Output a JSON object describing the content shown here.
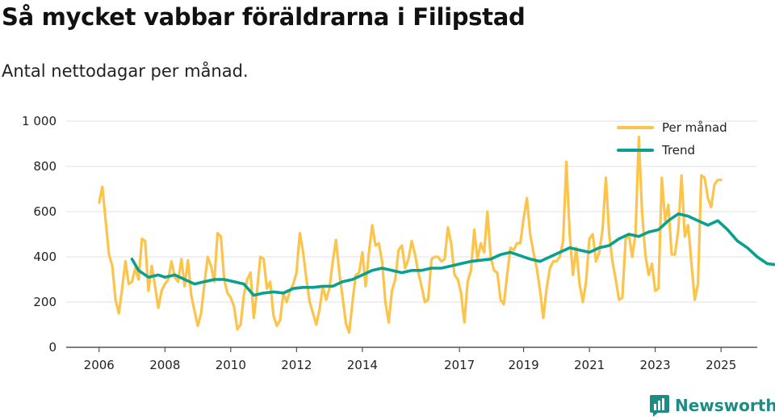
{
  "title": "Så mycket vabbar föräldrarna i Filipstad",
  "subtitle": "Antal nettodagar per månad.",
  "brand": {
    "name": "Newsworthy",
    "icon": "newsworthy-logo-icon",
    "color": "#1e8c84"
  },
  "colors": {
    "monthly": "#fcc44a",
    "trend": "#0aa08f",
    "grid": "#e0e0e0",
    "axis": "#333333"
  },
  "chart_data": {
    "type": "line",
    "title": "Så mycket vabbar föräldrarna i Filipstad",
    "subtitle": "Antal nettodagar per månad.",
    "xlabel": "",
    "ylabel": "",
    "ylim": [
      0,
      1000
    ],
    "xlim": [
      2005.0,
      2026.0
    ],
    "yticks": [
      0,
      200,
      400,
      600,
      800,
      1000
    ],
    "ytick_labels": [
      "0",
      "200",
      "400",
      "600",
      "800",
      "1 000"
    ],
    "xticks": [
      2006,
      2008,
      2010,
      2012,
      2014,
      2017,
      2019,
      2021,
      2023,
      2025
    ],
    "xtick_positions": [
      2006.0,
      2008.0,
      2010.0,
      2012.0,
      2014.0,
      2016.95,
      2018.9,
      2020.9,
      2022.9,
      2024.9
    ],
    "legend": {
      "position": "top-right",
      "entries": [
        "Per månad",
        "Trend"
      ]
    },
    "series": [
      {
        "name": "Per månad",
        "points": [
          [
            2006.0,
            640
          ],
          [
            2006.1,
            710
          ],
          [
            2006.2,
            560
          ],
          [
            2006.3,
            410
          ],
          [
            2006.4,
            360
          ],
          [
            2006.5,
            210
          ],
          [
            2006.6,
            150
          ],
          [
            2006.7,
            260
          ],
          [
            2006.8,
            380
          ],
          [
            2006.9,
            280
          ],
          [
            2007.0,
            290
          ],
          [
            2007.1,
            350
          ],
          [
            2007.2,
            300
          ],
          [
            2007.3,
            480
          ],
          [
            2007.4,
            470
          ],
          [
            2007.5,
            250
          ],
          [
            2007.6,
            360
          ],
          [
            2007.7,
            270
          ],
          [
            2007.8,
            175
          ],
          [
            2007.9,
            250
          ],
          [
            2008.0,
            280
          ],
          [
            2008.1,
            300
          ],
          [
            2008.2,
            380
          ],
          [
            2008.3,
            310
          ],
          [
            2008.4,
            290
          ],
          [
            2008.5,
            390
          ],
          [
            2008.6,
            270
          ],
          [
            2008.7,
            385
          ],
          [
            2008.8,
            230
          ],
          [
            2008.9,
            160
          ],
          [
            2009.0,
            95
          ],
          [
            2009.1,
            150
          ],
          [
            2009.2,
            280
          ],
          [
            2009.3,
            400
          ],
          [
            2009.4,
            360
          ],
          [
            2009.5,
            290
          ],
          [
            2009.6,
            505
          ],
          [
            2009.7,
            490
          ],
          [
            2009.8,
            300
          ],
          [
            2009.9,
            240
          ],
          [
            2010.0,
            220
          ],
          [
            2010.1,
            180
          ],
          [
            2010.2,
            80
          ],
          [
            2010.3,
            100
          ],
          [
            2010.4,
            230
          ],
          [
            2010.5,
            300
          ],
          [
            2010.6,
            330
          ],
          [
            2010.7,
            130
          ],
          [
            2010.8,
            250
          ],
          [
            2010.9,
            400
          ],
          [
            2011.0,
            390
          ],
          [
            2011.1,
            260
          ],
          [
            2011.2,
            290
          ],
          [
            2011.3,
            140
          ],
          [
            2011.4,
            95
          ],
          [
            2011.5,
            120
          ],
          [
            2011.6,
            240
          ],
          [
            2011.7,
            200
          ],
          [
            2011.8,
            250
          ],
          [
            2011.9,
            280
          ],
          [
            2012.0,
            330
          ],
          [
            2012.1,
            505
          ],
          [
            2012.2,
            420
          ],
          [
            2012.3,
            300
          ],
          [
            2012.4,
            200
          ],
          [
            2012.5,
            150
          ],
          [
            2012.6,
            100
          ],
          [
            2012.7,
            170
          ],
          [
            2012.8,
            270
          ],
          [
            2012.9,
            210
          ],
          [
            2013.0,
            260
          ],
          [
            2013.1,
            380
          ],
          [
            2013.2,
            475
          ],
          [
            2013.3,
            330
          ],
          [
            2013.4,
            220
          ],
          [
            2013.5,
            105
          ],
          [
            2013.6,
            65
          ],
          [
            2013.7,
            200
          ],
          [
            2013.8,
            320
          ],
          [
            2013.9,
            330
          ],
          [
            2014.0,
            420
          ],
          [
            2014.1,
            270
          ],
          [
            2014.2,
            420
          ],
          [
            2014.3,
            540
          ],
          [
            2014.4,
            450
          ],
          [
            2014.5,
            460
          ],
          [
            2014.6,
            380
          ],
          [
            2014.7,
            200
          ],
          [
            2014.8,
            110
          ],
          [
            2014.9,
            250
          ],
          [
            2015.0,
            300
          ],
          [
            2015.1,
            430
          ],
          [
            2015.2,
            450
          ],
          [
            2015.3,
            350
          ],
          [
            2015.4,
            390
          ],
          [
            2015.5,
            470
          ],
          [
            2015.6,
            410
          ],
          [
            2015.7,
            330
          ],
          [
            2015.8,
            270
          ],
          [
            2015.9,
            200
          ],
          [
            2016.0,
            210
          ],
          [
            2016.1,
            390
          ],
          [
            2016.2,
            400
          ],
          [
            2016.3,
            400
          ],
          [
            2016.4,
            380
          ],
          [
            2016.5,
            390
          ],
          [
            2016.6,
            530
          ],
          [
            2016.7,
            460
          ],
          [
            2016.8,
            320
          ],
          [
            2016.9,
            300
          ],
          [
            2017.0,
            240
          ],
          [
            2017.1,
            110
          ],
          [
            2017.2,
            290
          ],
          [
            2017.3,
            340
          ],
          [
            2017.4,
            520
          ],
          [
            2017.5,
            390
          ],
          [
            2017.6,
            460
          ],
          [
            2017.7,
            420
          ],
          [
            2017.8,
            600
          ],
          [
            2017.9,
            400
          ],
          [
            2018.0,
            340
          ],
          [
            2018.1,
            330
          ],
          [
            2018.2,
            210
          ],
          [
            2018.3,
            190
          ],
          [
            2018.4,
            320
          ],
          [
            2018.5,
            440
          ],
          [
            2018.6,
            430
          ],
          [
            2018.7,
            460
          ],
          [
            2018.8,
            460
          ],
          [
            2018.9,
            570
          ],
          [
            2019.0,
            660
          ],
          [
            2019.1,
            500
          ],
          [
            2019.2,
            420
          ],
          [
            2019.3,
            350
          ],
          [
            2019.4,
            250
          ],
          [
            2019.5,
            130
          ],
          [
            2019.6,
            260
          ],
          [
            2019.7,
            350
          ],
          [
            2019.8,
            380
          ],
          [
            2019.9,
            380
          ],
          [
            2020.0,
            400
          ],
          [
            2020.1,
            470
          ],
          [
            2020.2,
            820
          ],
          [
            2020.3,
            500
          ],
          [
            2020.4,
            320
          ],
          [
            2020.5,
            440
          ],
          [
            2020.6,
            280
          ],
          [
            2020.7,
            200
          ],
          [
            2020.8,
            290
          ],
          [
            2020.9,
            480
          ],
          [
            2021.0,
            500
          ],
          [
            2021.1,
            380
          ],
          [
            2021.2,
            420
          ],
          [
            2021.3,
            520
          ],
          [
            2021.4,
            750
          ],
          [
            2021.5,
            500
          ],
          [
            2021.6,
            380
          ],
          [
            2021.7,
            300
          ],
          [
            2021.8,
            210
          ],
          [
            2021.9,
            220
          ],
          [
            2022.0,
            480
          ],
          [
            2022.1,
            500
          ],
          [
            2022.2,
            400
          ],
          [
            2022.3,
            500
          ],
          [
            2022.4,
            930
          ],
          [
            2022.5,
            600
          ],
          [
            2022.6,
            410
          ],
          [
            2022.7,
            320
          ],
          [
            2022.8,
            370
          ],
          [
            2022.9,
            250
          ],
          [
            2023.0,
            260
          ],
          [
            2023.1,
            750
          ],
          [
            2023.2,
            560
          ],
          [
            2023.3,
            630
          ],
          [
            2023.4,
            410
          ],
          [
            2023.5,
            410
          ],
          [
            2023.6,
            520
          ],
          [
            2023.7,
            760
          ],
          [
            2023.8,
            490
          ],
          [
            2023.9,
            540
          ],
          [
            2024.0,
            370
          ],
          [
            2024.1,
            210
          ],
          [
            2024.2,
            280
          ],
          [
            2024.3,
            760
          ],
          [
            2024.4,
            750
          ],
          [
            2024.5,
            660
          ],
          [
            2024.6,
            620
          ],
          [
            2024.7,
            720
          ],
          [
            2024.8,
            740
          ],
          [
            2024.9,
            740
          ]
        ],
        "color": "#fcc44a"
      },
      {
        "name": "Trend",
        "points": [
          [
            2007.0,
            390
          ],
          [
            2007.2,
            340
          ],
          [
            2007.5,
            310
          ],
          [
            2007.8,
            320
          ],
          [
            2008.0,
            310
          ],
          [
            2008.3,
            320
          ],
          [
            2008.6,
            300
          ],
          [
            2008.9,
            280
          ],
          [
            2009.2,
            290
          ],
          [
            2009.5,
            300
          ],
          [
            2009.8,
            300
          ],
          [
            2010.1,
            290
          ],
          [
            2010.4,
            280
          ],
          [
            2010.7,
            230
          ],
          [
            2011.0,
            240
          ],
          [
            2011.3,
            245
          ],
          [
            2011.6,
            240
          ],
          [
            2011.9,
            260
          ],
          [
            2012.2,
            265
          ],
          [
            2012.5,
            265
          ],
          [
            2012.8,
            270
          ],
          [
            2013.1,
            270
          ],
          [
            2013.4,
            290
          ],
          [
            2013.7,
            300
          ],
          [
            2014.0,
            320
          ],
          [
            2014.3,
            340
          ],
          [
            2014.6,
            350
          ],
          [
            2014.9,
            340
          ],
          [
            2015.2,
            330
          ],
          [
            2015.5,
            340
          ],
          [
            2015.8,
            340
          ],
          [
            2016.1,
            350
          ],
          [
            2016.4,
            350
          ],
          [
            2016.7,
            360
          ],
          [
            2017.0,
            370
          ],
          [
            2017.3,
            380
          ],
          [
            2017.6,
            385
          ],
          [
            2017.9,
            390
          ],
          [
            2018.2,
            410
          ],
          [
            2018.5,
            420
          ],
          [
            2018.8,
            405
          ],
          [
            2019.1,
            390
          ],
          [
            2019.4,
            380
          ],
          [
            2019.7,
            400
          ],
          [
            2020.0,
            420
          ],
          [
            2020.3,
            440
          ],
          [
            2020.6,
            430
          ],
          [
            2020.9,
            420
          ],
          [
            2021.2,
            440
          ],
          [
            2021.5,
            450
          ],
          [
            2021.8,
            480
          ],
          [
            2022.1,
            500
          ],
          [
            2022.4,
            490
          ],
          [
            2022.7,
            510
          ],
          [
            2023.0,
            520
          ],
          [
            2023.3,
            560
          ],
          [
            2023.6,
            590
          ],
          [
            2023.9,
            580
          ],
          [
            2024.2,
            560
          ],
          [
            2024.5,
            540
          ],
          [
            2024.8,
            560
          ],
          [
            2025.1,
            520
          ],
          [
            2025.4,
            470
          ],
          [
            2025.7,
            440
          ],
          [
            2026.0,
            400
          ],
          [
            2026.3,
            370
          ],
          [
            2026.6,
            365
          ],
          [
            2026.9,
            370
          ]
        ],
        "color": "#0aa08f"
      }
    ]
  }
}
